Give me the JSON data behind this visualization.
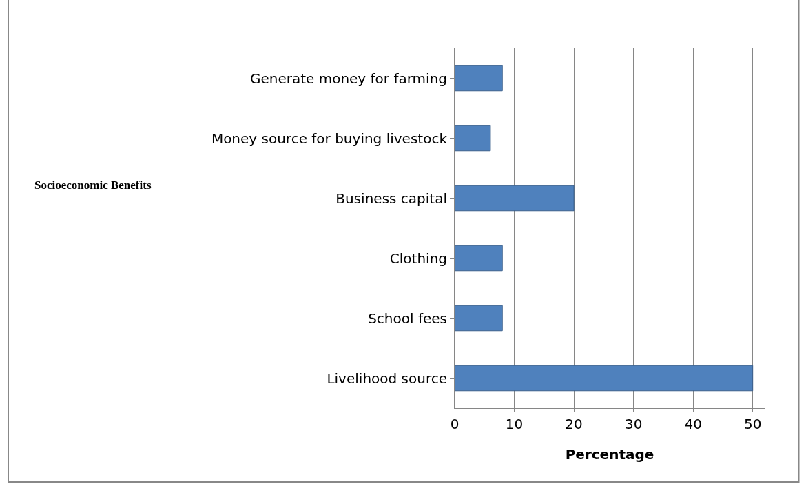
{
  "chart_data": {
    "type": "bar",
    "orientation": "horizontal",
    "categories": [
      "Generate money for farming",
      "Money source for buying livestock",
      "Business capital",
      "Clothing",
      "School fees",
      "Livelihood source"
    ],
    "values": [
      8,
      6,
      20,
      8,
      8,
      50
    ],
    "color": "#4f81bd",
    "xlabel": "Percentage",
    "annotations": [
      "Socioeconomic Benefits"
    ],
    "xlim": [
      0,
      52
    ],
    "xticks": [
      0,
      10,
      20,
      30,
      40,
      50
    ],
    "grid": "x"
  }
}
